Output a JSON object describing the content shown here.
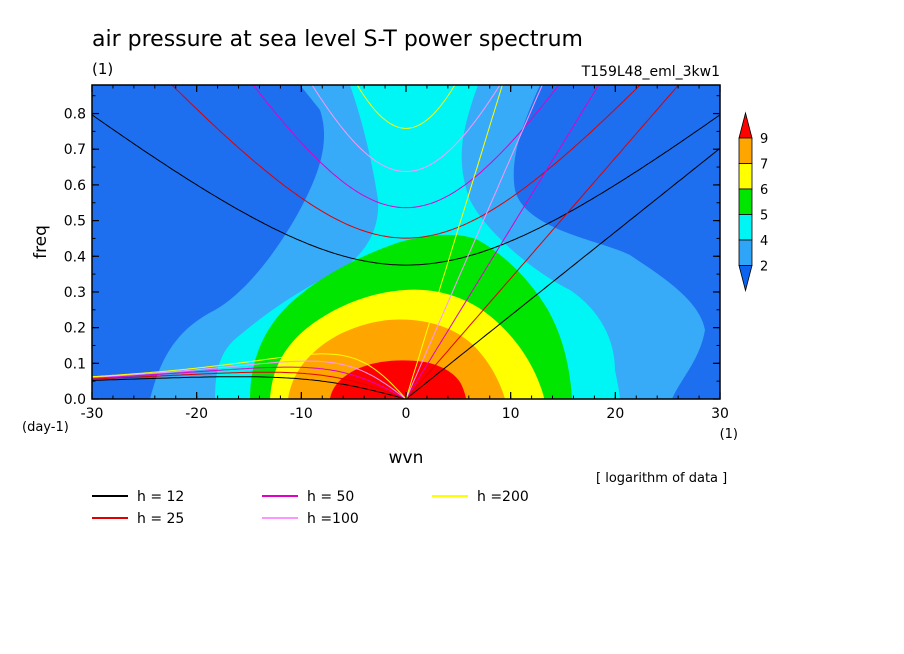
{
  "chart_data": {
    "type": "heatmap",
    "title": "air pressure at sea level S-T power spectrum",
    "units": "(1)",
    "run_label": "T159L48_eml_3kw1",
    "xlabel": "wvn",
    "ylabel": "freq",
    "x_unit": "(1)",
    "y_unit": "(day-1)",
    "xlim": [
      -30,
      30
    ],
    "ylim": [
      0,
      0.88
    ],
    "xticks": [
      "-30",
      "-20",
      "-10",
      "0",
      "10",
      "20",
      "30"
    ],
    "yticks": [
      "0.0",
      "0.1",
      "0.2",
      "0.3",
      "0.4",
      "0.5",
      "0.6",
      "0.7",
      "0.8"
    ],
    "colorbar": {
      "labels": [
        "2",
        "4",
        "5",
        "6",
        "7",
        "9"
      ],
      "note": "[ logarithm of data ]",
      "colors": [
        "#0a64f0",
        "#2fa5f7",
        "#00f5f5",
        "#00e600",
        "#ffff00",
        "#ffa500",
        "#ff0000"
      ]
    },
    "contour_levels": [
      {
        "level": "<2",
        "color": "#1e6ef0"
      },
      {
        "level": "2-4",
        "color": "#37aaf8"
      },
      {
        "level": "4-5",
        "color": "#00f5f5"
      },
      {
        "level": "5-6",
        "color": "#00e600"
      },
      {
        "level": "6-7",
        "color": "#ffff00"
      },
      {
        "level": "7-9",
        "color": "#ffa500"
      },
      {
        "level": ">9",
        "color": "#ff0000"
      }
    ],
    "dispersion_curves": [
      {
        "name": "h = 12",
        "color": "#000000",
        "h": 12
      },
      {
        "name": "h = 25",
        "color": "#e00000",
        "h": 25
      },
      {
        "name": "h = 50",
        "color": "#e000c8",
        "h": 50
      },
      {
        "name": "h =100",
        "color": "#ff96ff",
        "h": 100
      },
      {
        "name": "h =200",
        "color": "#ffff00",
        "h": 200
      }
    ]
  }
}
